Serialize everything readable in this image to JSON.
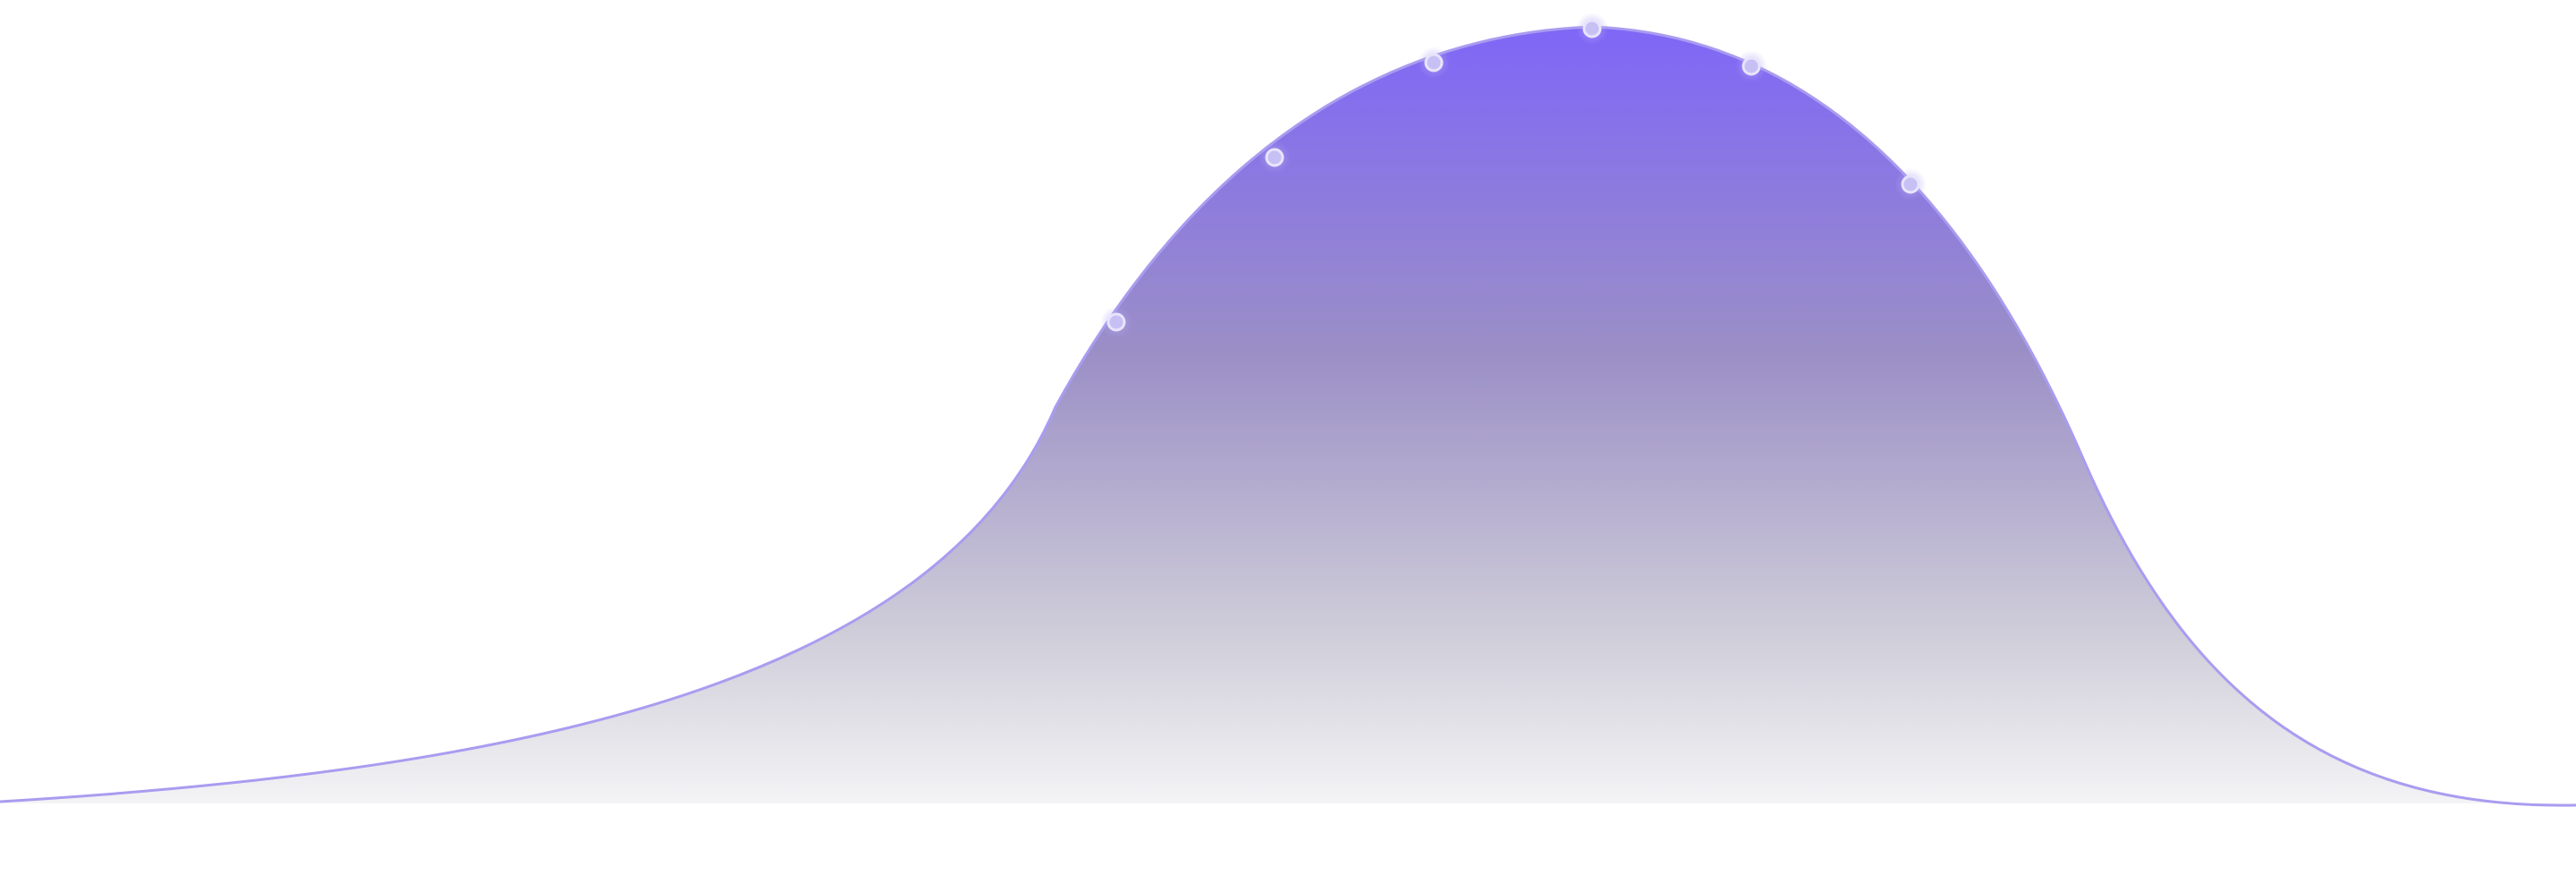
{
  "graphic": {
    "kind": "decorative bell-curve area with vertical markers",
    "colors": {
      "background": "#ffffff",
      "curve_line": "#a99cf0",
      "fill_top": "#7f66f7",
      "fill_mid": "#9b8fc6",
      "fill_bottom": "#f4f4f6",
      "marker_fill": "#c7c0f5",
      "marker_stroke": "#e8e4fb",
      "marker_line": "#7c75a8"
    },
    "marker_count": 6
  }
}
